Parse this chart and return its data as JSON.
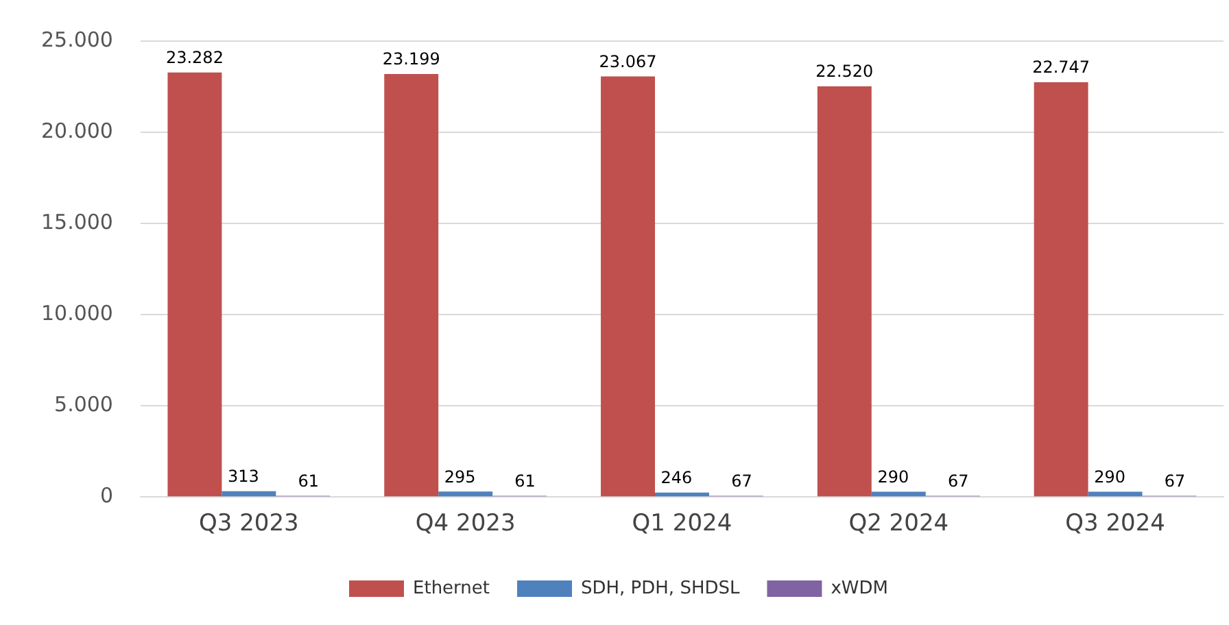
{
  "chart_data": {
    "type": "bar",
    "categories": [
      "Q3 2023",
      "Q4 2023",
      "Q1 2024",
      "Q2 2024",
      "Q3 2024"
    ],
    "series": [
      {
        "name": "Ethernet",
        "color": "#c0504d",
        "values": [
          23282,
          23199,
          23067,
          22520,
          22747
        ],
        "value_labels": [
          "23.282",
          "23.199",
          "23.067",
          "22.520",
          "22.747"
        ]
      },
      {
        "name": "SDH, PDH, SHDSL",
        "color": "#4f81bd",
        "values": [
          313,
          295,
          246,
          290,
          290
        ],
        "value_labels": [
          "313",
          "295",
          "246",
          "290",
          "290"
        ]
      },
      {
        "name": "xWDM",
        "color": "#8064a2",
        "values": [
          61,
          61,
          67,
          67,
          67
        ],
        "value_labels": [
          "61",
          "61",
          "67",
          "67",
          "67"
        ]
      }
    ],
    "ylim": [
      0,
      25000
    ],
    "yticks": [
      {
        "value": 0,
        "label": "0"
      },
      {
        "value": 5000,
        "label": "5.000"
      },
      {
        "value": 10000,
        "label": "10.000"
      },
      {
        "value": 15000,
        "label": "15.000"
      },
      {
        "value": 20000,
        "label": "20.000"
      },
      {
        "value": 25000,
        "label": "25.000"
      }
    ],
    "grid": "y",
    "legend": "bottom"
  }
}
